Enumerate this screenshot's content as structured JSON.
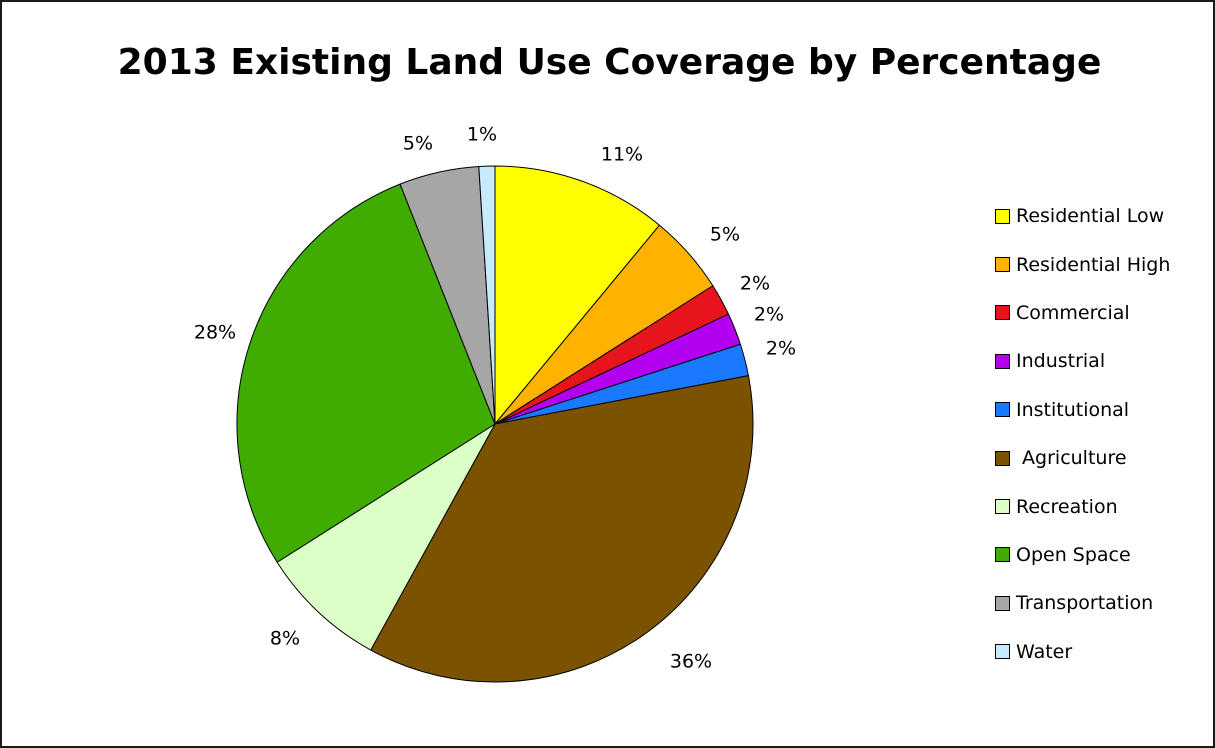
{
  "chart_data": {
    "type": "pie",
    "title": "2013 Existing Land Use Coverage by Percentage",
    "legend_position": "right",
    "categories": [
      "Residential Low",
      "Residential High",
      "Commercial",
      "Industrial",
      "Institutional",
      " Agriculture",
      "Recreation",
      "Open Space",
      "Transportation",
      "Water"
    ],
    "values": [
      11,
      5,
      2,
      2,
      2,
      36,
      8,
      28,
      5,
      1
    ],
    "data_labels": [
      "11%",
      "5%",
      "2%",
      "2%",
      "2%",
      "36%",
      "8%",
      "28%",
      "5%",
      "1%"
    ],
    "colors": [
      "#ffff00",
      "#ffb300",
      "#e8141c",
      "#b300f0",
      "#1a7aff",
      "#7a5200",
      "#dcffc8",
      "#40ac00",
      "#a6a6a6",
      "#c8eaff"
    ]
  }
}
